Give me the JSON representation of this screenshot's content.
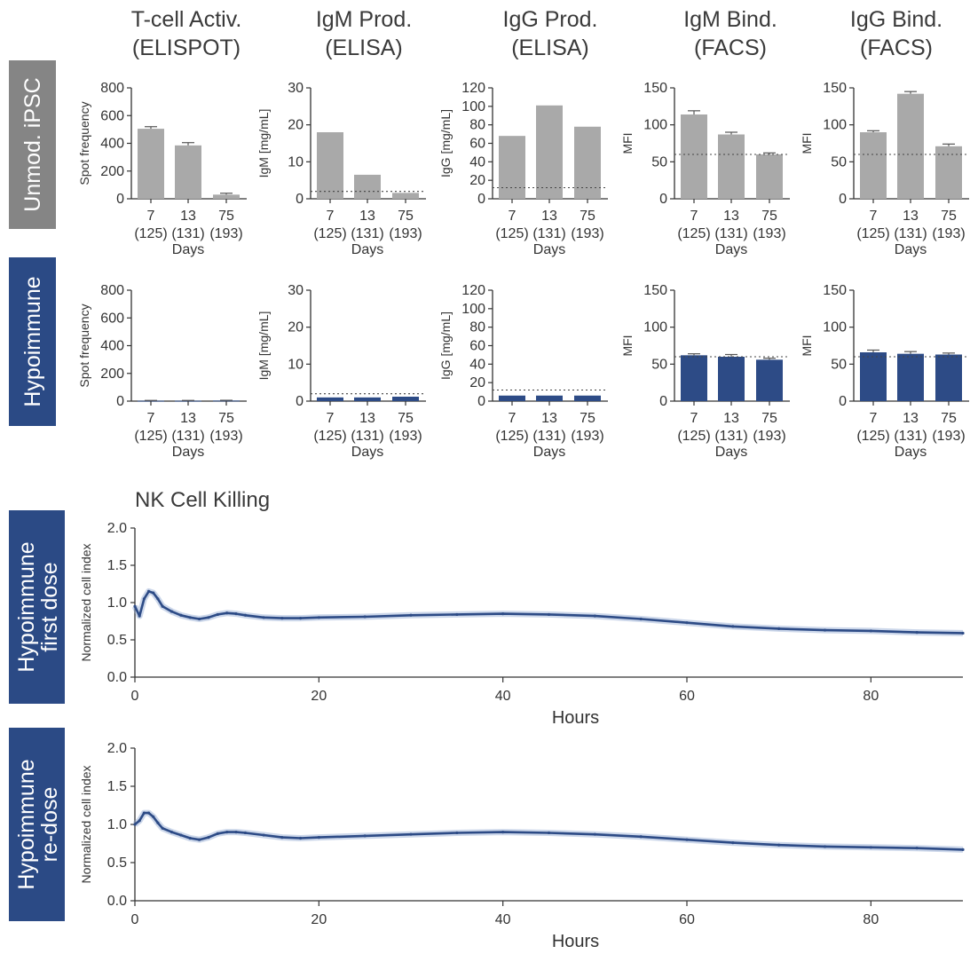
{
  "column_titles": [
    [
      "T-cell Activ.",
      "(ELISPOT)"
    ],
    [
      "IgM Prod.",
      "(ELISA)"
    ],
    [
      "IgG Prod.",
      "(ELISA)"
    ],
    [
      "IgM Bind.",
      "(FACS)"
    ],
    [
      "IgG Bind.",
      "(FACS)"
    ]
  ],
  "row_labels": [
    [
      "Unmod. iPSC"
    ],
    [
      "Hypoimmune"
    ],
    [
      "Hypoimmune",
      "first dose"
    ],
    [
      "Hypoimmune",
      "re-dose"
    ]
  ],
  "nk_title": "NK Cell Killing",
  "colors": {
    "unmod_bar": "#a9a9a9",
    "hypo_bar": "#2d4b86",
    "unmod_label_bg": "#858585",
    "hypo_label_bg": "#2b4a85",
    "line": "#2d4b86",
    "axis": "#333333"
  },
  "chart_data": [
    {
      "type": "bar",
      "row": "Unmod. iPSC",
      "col": 0,
      "categories": [
        [
          "7",
          "(125)"
        ],
        [
          "13",
          "(131)"
        ],
        [
          "75",
          "(193)"
        ]
      ],
      "xlabel": "Days",
      "ylabel": "Spot frequency",
      "ylim": [
        0,
        800
      ],
      "yticks": [
        0,
        200,
        400,
        600,
        800
      ],
      "values": [
        505,
        385,
        30
      ],
      "errors": [
        15,
        20,
        10
      ],
      "threshold": null
    },
    {
      "type": "bar",
      "row": "Unmod. iPSC",
      "col": 1,
      "categories": [
        [
          "7",
          "(125)"
        ],
        [
          "13",
          "(131)"
        ],
        [
          "75",
          "(193)"
        ]
      ],
      "xlabel": "Days",
      "ylabel": "IgM [mg/mL]",
      "ylim": [
        0,
        30
      ],
      "yticks": [
        0,
        10,
        20,
        30
      ],
      "values": [
        18,
        6.5,
        1.6
      ],
      "errors": [
        0,
        0,
        0
      ],
      "threshold": 2
    },
    {
      "type": "bar",
      "row": "Unmod. iPSC",
      "col": 2,
      "categories": [
        [
          "7",
          "(125)"
        ],
        [
          "13",
          "(131)"
        ],
        [
          "75",
          "(193)"
        ]
      ],
      "xlabel": "Days",
      "ylabel": "IgG [mg/mL]",
      "ylim": [
        0,
        120
      ],
      "yticks": [
        0,
        20,
        40,
        60,
        80,
        100,
        120
      ],
      "values": [
        68,
        101,
        78
      ],
      "errors": [
        0,
        0,
        0
      ],
      "threshold": 12
    },
    {
      "type": "bar",
      "row": "Unmod. iPSC",
      "col": 3,
      "categories": [
        [
          "7",
          "(125)"
        ],
        [
          "13",
          "(131)"
        ],
        [
          "75",
          "(193)"
        ]
      ],
      "xlabel": "Days",
      "ylabel": "MFI",
      "ylim": [
        0,
        150
      ],
      "yticks": [
        0,
        50,
        100,
        150
      ],
      "values": [
        114,
        87,
        60
      ],
      "errors": [
        5,
        3,
        2
      ],
      "threshold": 60
    },
    {
      "type": "bar",
      "row": "Unmod. iPSC",
      "col": 4,
      "categories": [
        [
          "7",
          "(125)"
        ],
        [
          "13",
          "(131)"
        ],
        [
          "75",
          "(193)"
        ]
      ],
      "xlabel": "Days",
      "ylabel": "MFI",
      "ylim": [
        0,
        150
      ],
      "yticks": [
        0,
        50,
        100,
        150
      ],
      "values": [
        90,
        142,
        71
      ],
      "errors": [
        2,
        3,
        3
      ],
      "threshold": 60
    },
    {
      "type": "bar",
      "row": "Hypoimmune",
      "col": 0,
      "categories": [
        [
          "7",
          "(125)"
        ],
        [
          "13",
          "(131)"
        ],
        [
          "75",
          "(193)"
        ]
      ],
      "xlabel": "Days",
      "ylabel": "Spot frequency",
      "ylim": [
        0,
        800
      ],
      "yticks": [
        0,
        200,
        400,
        600,
        800
      ],
      "values": [
        3,
        3,
        4
      ],
      "errors": [
        2,
        2,
        2
      ],
      "threshold": null
    },
    {
      "type": "bar",
      "row": "Hypoimmune",
      "col": 1,
      "categories": [
        [
          "7",
          "(125)"
        ],
        [
          "13",
          "(131)"
        ],
        [
          "75",
          "(193)"
        ]
      ],
      "xlabel": "Days",
      "ylabel": "IgM [mg/mL]",
      "ylim": [
        0,
        30
      ],
      "yticks": [
        0,
        10,
        20,
        30
      ],
      "values": [
        1,
        1,
        1.2
      ],
      "errors": [
        0,
        0,
        0
      ],
      "threshold": 2
    },
    {
      "type": "bar",
      "row": "Hypoimmune",
      "col": 2,
      "categories": [
        [
          "7",
          "(125)"
        ],
        [
          "13",
          "(131)"
        ],
        [
          "75",
          "(193)"
        ]
      ],
      "xlabel": "Days",
      "ylabel": "IgG [mg/mL]",
      "ylim": [
        0,
        120
      ],
      "yticks": [
        0,
        20,
        40,
        60,
        80,
        100,
        120
      ],
      "values": [
        6,
        6,
        6
      ],
      "errors": [
        0,
        0,
        0
      ],
      "threshold": 12
    },
    {
      "type": "bar",
      "row": "Hypoimmune",
      "col": 3,
      "categories": [
        [
          "7",
          "(125)"
        ],
        [
          "13",
          "(131)"
        ],
        [
          "75",
          "(193)"
        ]
      ],
      "xlabel": "Days",
      "ylabel": "MFI",
      "ylim": [
        0,
        150
      ],
      "yticks": [
        0,
        50,
        100,
        150
      ],
      "values": [
        62,
        60,
        56
      ],
      "errors": [
        2,
        3,
        2
      ],
      "threshold": 60
    },
    {
      "type": "bar",
      "row": "Hypoimmune",
      "col": 4,
      "categories": [
        [
          "7",
          "(125)"
        ],
        [
          "13",
          "(131)"
        ],
        [
          "75",
          "(193)"
        ]
      ],
      "xlabel": "Days",
      "ylabel": "MFI",
      "ylim": [
        0,
        150
      ],
      "yticks": [
        0,
        50,
        100,
        150
      ],
      "values": [
        66,
        64,
        63
      ],
      "errors": [
        3,
        3,
        2
      ],
      "threshold": 60
    },
    {
      "type": "line",
      "row": "Hypoimmune first dose",
      "xlabel": "Hours",
      "ylabel": "Normalized cell index",
      "xlim": [
        0,
        90
      ],
      "ylim": [
        0,
        2.0
      ],
      "xticks": [
        0,
        20,
        40,
        60,
        80
      ],
      "yticks": [
        0.0,
        0.5,
        1.0,
        1.5,
        2.0
      ],
      "x": [
        0,
        0.5,
        1,
        1.5,
        2,
        2.5,
        3,
        4,
        5,
        6,
        7,
        8,
        9,
        10,
        11,
        12,
        14,
        16,
        18,
        20,
        25,
        30,
        35,
        40,
        45,
        50,
        55,
        60,
        65,
        70,
        75,
        80,
        85,
        90
      ],
      "y": [
        0.95,
        0.82,
        1.05,
        1.15,
        1.13,
        1.05,
        0.95,
        0.88,
        0.83,
        0.8,
        0.78,
        0.8,
        0.84,
        0.86,
        0.85,
        0.83,
        0.8,
        0.79,
        0.79,
        0.8,
        0.81,
        0.83,
        0.84,
        0.85,
        0.84,
        0.82,
        0.78,
        0.73,
        0.68,
        0.65,
        0.63,
        0.62,
        0.6,
        0.59
      ]
    },
    {
      "type": "line",
      "row": "Hypoimmune re-dose",
      "xlabel": "Hours",
      "ylabel": "Normalized cell index",
      "xlim": [
        0,
        90
      ],
      "ylim": [
        0,
        2.0
      ],
      "xticks": [
        0,
        20,
        40,
        60,
        80
      ],
      "yticks": [
        0.0,
        0.5,
        1.0,
        1.5,
        2.0
      ],
      "x": [
        0,
        0.5,
        1,
        1.5,
        2,
        2.5,
        3,
        4,
        5,
        6,
        7,
        8,
        9,
        10,
        11,
        12,
        14,
        16,
        18,
        20,
        25,
        30,
        35,
        40,
        45,
        50,
        55,
        60,
        65,
        70,
        75,
        80,
        85,
        90
      ],
      "y": [
        1.0,
        1.05,
        1.15,
        1.15,
        1.1,
        1.02,
        0.95,
        0.9,
        0.86,
        0.82,
        0.8,
        0.83,
        0.88,
        0.9,
        0.9,
        0.89,
        0.86,
        0.83,
        0.82,
        0.83,
        0.85,
        0.87,
        0.89,
        0.9,
        0.89,
        0.87,
        0.84,
        0.8,
        0.76,
        0.73,
        0.71,
        0.7,
        0.69,
        0.67
      ]
    }
  ]
}
